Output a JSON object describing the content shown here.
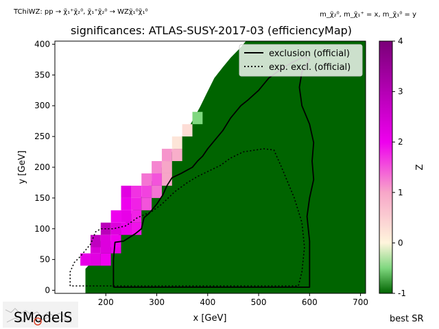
{
  "header": {
    "process_label": "TChiWZ: pp → χ̃₁⁺χ̃₂⁰, χ̃₁⁺χ̃₂⁰ → WZχ̃₁⁰χ̃₁⁰",
    "mass_label": "m_χ̃₂⁰, m_χ̃₁⁺ = x, m_χ̃₁⁰ = y",
    "logo_text": "SModelS",
    "best_sr_label": "best SR"
  },
  "colors": {
    "background": "#ffffff",
    "exclusion_line": "#000000",
    "excluded_region": "#006400",
    "legend_bg": "#ffffff"
  },
  "chart_data": {
    "type": "heatmap",
    "title": "significances: ATLAS-SUSY-2017-03 (efficiencyMap)",
    "xlabel": "x [GeV]",
    "ylabel": "y [GeV]",
    "xlim": [
      100,
      710
    ],
    "ylim": [
      -5,
      405
    ],
    "xticks": [
      200,
      300,
      400,
      500,
      600,
      700
    ],
    "yticks": [
      0,
      50,
      100,
      150,
      200,
      250,
      300,
      350,
      400
    ],
    "colorbar": {
      "label": "Z",
      "range": [
        -1,
        4
      ],
      "ticks": [
        -1,
        0,
        1,
        2,
        3,
        4
      ],
      "stops": [
        {
          "v": -1,
          "color": "#006400"
        },
        {
          "v": -0.5,
          "color": "#7fd77f"
        },
        {
          "v": 0,
          "color": "#fff5dc"
        },
        {
          "v": 1,
          "color": "#f7a6c8"
        },
        {
          "v": 2,
          "color": "#ee00ee"
        },
        {
          "v": 3,
          "color": "#b400b4"
        },
        {
          "v": 4,
          "color": "#7a0078"
        }
      ]
    },
    "excluded_region_boundary": [
      [
        160,
        0
      ],
      [
        160,
        35
      ],
      [
        175,
        48
      ],
      [
        190,
        60
      ],
      [
        210,
        70
      ],
      [
        222,
        85
      ],
      [
        232,
        100
      ],
      [
        250,
        125
      ],
      [
        268,
        150
      ],
      [
        288,
        175
      ],
      [
        310,
        200
      ],
      [
        330,
        225
      ],
      [
        345,
        245
      ],
      [
        363,
        265
      ],
      [
        375,
        283
      ],
      [
        385,
        298
      ],
      [
        398,
        320
      ],
      [
        413,
        345
      ],
      [
        430,
        363
      ],
      [
        445,
        378
      ],
      [
        465,
        395
      ],
      [
        475,
        405
      ],
      [
        710,
        405
      ],
      [
        710,
        -5
      ],
      [
        160,
        -5
      ]
    ],
    "cells": [
      {
        "x": 160,
        "y": 50,
        "z": 2.1
      },
      {
        "x": 180,
        "y": 50,
        "z": 2.2
      },
      {
        "x": 200,
        "y": 50,
        "z": 2.0
      },
      {
        "x": 180,
        "y": 70,
        "z": 2.4
      },
      {
        "x": 200,
        "y": 70,
        "z": 2.3
      },
      {
        "x": 220,
        "y": 70,
        "z": 2.1
      },
      {
        "x": 180,
        "y": 80,
        "z": 2.8
      },
      {
        "x": 200,
        "y": 80,
        "z": 2.3
      },
      {
        "x": 220,
        "y": 80,
        "z": 2.0
      },
      {
        "x": 200,
        "y": 100,
        "z": 2.9
      },
      {
        "x": 220,
        "y": 100,
        "z": 2.3
      },
      {
        "x": 240,
        "y": 100,
        "z": 2.0
      },
      {
        "x": 260,
        "y": 100,
        "z": 1.9
      },
      {
        "x": 220,
        "y": 120,
        "z": 2.0
      },
      {
        "x": 240,
        "y": 120,
        "z": 2.1
      },
      {
        "x": 260,
        "y": 120,
        "z": 1.8
      },
      {
        "x": 240,
        "y": 140,
        "z": 2.0
      },
      {
        "x": 260,
        "y": 140,
        "z": 1.8
      },
      {
        "x": 280,
        "y": 140,
        "z": 1.5
      },
      {
        "x": 240,
        "y": 160,
        "z": 2.2
      },
      {
        "x": 260,
        "y": 160,
        "z": 1.7
      },
      {
        "x": 280,
        "y": 160,
        "z": 1.6
      },
      {
        "x": 300,
        "y": 160,
        "z": 1.3
      },
      {
        "x": 280,
        "y": 180,
        "z": 1.3
      },
      {
        "x": 300,
        "y": 180,
        "z": 1.5
      },
      {
        "x": 320,
        "y": 180,
        "z": 1.0
      },
      {
        "x": 300,
        "y": 200,
        "z": 1.2
      },
      {
        "x": 320,
        "y": 200,
        "z": 1.0
      },
      {
        "x": 320,
        "y": 220,
        "z": 1.1
      },
      {
        "x": 340,
        "y": 220,
        "z": 0.9
      },
      {
        "x": 340,
        "y": 240,
        "z": 0.2
      },
      {
        "x": 360,
        "y": 260,
        "z": 0.3
      },
      {
        "x": 380,
        "y": 280,
        "z": -0.5
      }
    ],
    "legend": {
      "position": "upper right",
      "entries": [
        {
          "label": "exclusion (official)",
          "style": "solid"
        },
        {
          "label": "exp. excl. (official)",
          "style": "dotted"
        }
      ]
    },
    "series": [
      {
        "name": "exclusion (official)",
        "style": "solid",
        "points": [
          [
            215,
            5
          ],
          [
            215,
            50
          ],
          [
            218,
            78
          ],
          [
            235,
            80
          ],
          [
            258,
            92
          ],
          [
            270,
            100
          ],
          [
            275,
            118
          ],
          [
            285,
            125
          ],
          [
            300,
            140
          ],
          [
            312,
            155
          ],
          [
            320,
            170
          ],
          [
            330,
            183
          ],
          [
            348,
            190
          ],
          [
            370,
            200
          ],
          [
            380,
            210
          ],
          [
            390,
            218
          ],
          [
            400,
            230
          ],
          [
            415,
            245
          ],
          [
            430,
            260
          ],
          [
            445,
            280
          ],
          [
            455,
            290
          ],
          [
            465,
            300
          ],
          [
            480,
            310
          ],
          [
            500,
            325
          ],
          [
            520,
            345
          ],
          [
            545,
            360
          ],
          [
            565,
            370
          ],
          [
            590,
            380
          ],
          [
            600,
            375
          ],
          [
            585,
            355
          ],
          [
            580,
            330
          ],
          [
            585,
            300
          ],
          [
            600,
            270
          ],
          [
            608,
            240
          ],
          [
            605,
            210
          ],
          [
            608,
            180
          ],
          [
            600,
            150
          ],
          [
            595,
            120
          ],
          [
            600,
            80
          ],
          [
            600,
            40
          ],
          [
            600,
            5
          ],
          [
            215,
            5
          ]
        ]
      },
      {
        "name": "exp. excl. (official)",
        "style": "dotted",
        "points": [
          [
            130,
            7
          ],
          [
            130,
            30
          ],
          [
            138,
            45
          ],
          [
            150,
            55
          ],
          [
            170,
            75
          ],
          [
            180,
            95
          ],
          [
            190,
            100
          ],
          [
            215,
            100
          ],
          [
            240,
            105
          ],
          [
            262,
            118
          ],
          [
            290,
            128
          ],
          [
            310,
            140
          ],
          [
            335,
            160
          ],
          [
            360,
            175
          ],
          [
            380,
            185
          ],
          [
            400,
            193
          ],
          [
            425,
            203
          ],
          [
            445,
            215
          ],
          [
            470,
            225
          ],
          [
            510,
            230
          ],
          [
            530,
            228
          ],
          [
            545,
            200
          ],
          [
            570,
            150
          ],
          [
            585,
            110
          ],
          [
            590,
            70
          ],
          [
            585,
            30
          ],
          [
            578,
            7
          ],
          [
            130,
            7
          ]
        ]
      }
    ]
  }
}
